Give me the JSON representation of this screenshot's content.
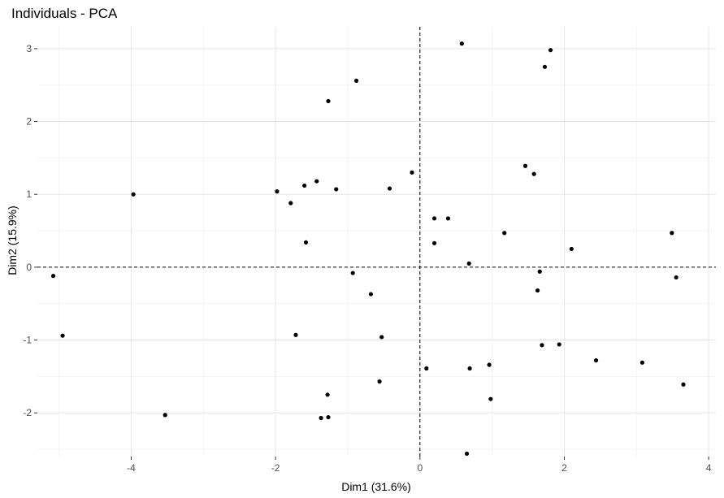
{
  "chart_data": {
    "type": "scatter",
    "title": "Individuals - PCA",
    "xlabel": "Dim1 (31.6%)",
    "ylabel": "Dim2 (15.9%)",
    "xlim": [
      -5.3,
      4.1
    ],
    "ylim": [
      -2.6,
      3.3
    ],
    "xticks": [
      -4,
      -2,
      0,
      2,
      4
    ],
    "yticks": [
      -2,
      -1,
      0,
      1,
      2,
      3
    ],
    "grid": true,
    "reference_lines": {
      "x": 0,
      "y": 0,
      "style": "dashed"
    },
    "points": [
      {
        "x": 0.58,
        "y": 3.07
      },
      {
        "x": 1.81,
        "y": 2.98
      },
      {
        "x": 1.73,
        "y": 2.75
      },
      {
        "x": -0.88,
        "y": 2.56
      },
      {
        "x": -1.27,
        "y": 2.28
      },
      {
        "x": 1.46,
        "y": 1.39
      },
      {
        "x": 1.58,
        "y": 1.28
      },
      {
        "x": -0.11,
        "y": 1.3
      },
      {
        "x": -1.43,
        "y": 1.18
      },
      {
        "x": -1.6,
        "y": 1.12
      },
      {
        "x": -1.16,
        "y": 1.07
      },
      {
        "x": -0.42,
        "y": 1.08
      },
      {
        "x": -1.98,
        "y": 1.04
      },
      {
        "x": -3.97,
        "y": 1.0
      },
      {
        "x": -1.79,
        "y": 0.88
      },
      {
        "x": 0.2,
        "y": 0.67
      },
      {
        "x": 0.39,
        "y": 0.67
      },
      {
        "x": 1.17,
        "y": 0.47
      },
      {
        "x": 3.49,
        "y": 0.47
      },
      {
        "x": -1.58,
        "y": 0.34
      },
      {
        "x": 0.2,
        "y": 0.33
      },
      {
        "x": 2.1,
        "y": 0.25
      },
      {
        "x": 0.68,
        "y": 0.05
      },
      {
        "x": -5.08,
        "y": -0.12
      },
      {
        "x": -0.93,
        "y": -0.08
      },
      {
        "x": 1.66,
        "y": -0.06
      },
      {
        "x": 3.55,
        "y": -0.14
      },
      {
        "x": -0.68,
        "y": -0.37
      },
      {
        "x": 1.63,
        "y": -0.32
      },
      {
        "x": -4.95,
        "y": -0.94
      },
      {
        "x": -1.72,
        "y": -0.93
      },
      {
        "x": -0.53,
        "y": -0.96
      },
      {
        "x": 1.69,
        "y": -1.07
      },
      {
        "x": 1.93,
        "y": -1.06
      },
      {
        "x": 2.44,
        "y": -1.28
      },
      {
        "x": 3.08,
        "y": -1.31
      },
      {
        "x": 0.96,
        "y": -1.34
      },
      {
        "x": 0.09,
        "y": -1.39
      },
      {
        "x": 0.69,
        "y": -1.39
      },
      {
        "x": -0.56,
        "y": -1.57
      },
      {
        "x": 3.65,
        "y": -1.61
      },
      {
        "x": -1.28,
        "y": -1.75
      },
      {
        "x": 0.98,
        "y": -1.81
      },
      {
        "x": -3.53,
        "y": -2.03
      },
      {
        "x": -1.37,
        "y": -2.07
      },
      {
        "x": -1.27,
        "y": -2.06
      },
      {
        "x": 0.65,
        "y": -2.56
      }
    ]
  }
}
